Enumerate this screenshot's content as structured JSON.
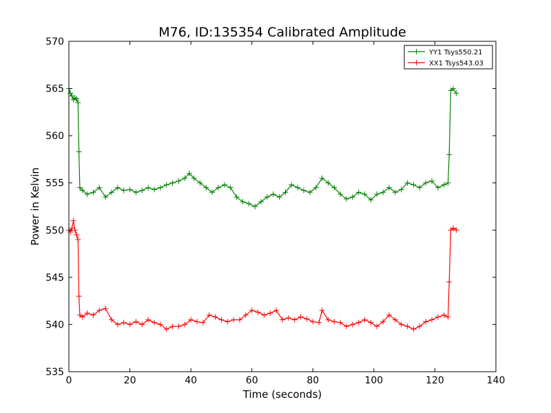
{
  "chart_data": {
    "type": "line",
    "title": "M76, ID:135354 Calibrated Amplitude",
    "xlabel": "Time (seconds)",
    "ylabel": "Power in Kelvin",
    "xlim": [
      0,
      140
    ],
    "ylim": [
      535,
      570
    ],
    "xticks": [
      "0",
      "20",
      "40",
      "60",
      "80",
      "100",
      "120",
      "140"
    ],
    "yticks": [
      "535",
      "540",
      "545",
      "550",
      "555",
      "560",
      "565",
      "570"
    ],
    "grid": false,
    "legend_position": "top-right",
    "marker": "plus",
    "series": [
      {
        "name": "YY1 Tsys550.21",
        "color": "#008000",
        "x": [
          0.0,
          0.5,
          1.0,
          1.5,
          2.0,
          2.5,
          3.0,
          3.3,
          3.6,
          4.5,
          6,
          8,
          10,
          12,
          14,
          16,
          18,
          20,
          22,
          24,
          26,
          28,
          30,
          32,
          34,
          36,
          38,
          39.5,
          41,
          43,
          45,
          47,
          49,
          51,
          53,
          55,
          57,
          59,
          61,
          63,
          65,
          67,
          69,
          71,
          73,
          75,
          77,
          79,
          81,
          83,
          85,
          87,
          89,
          91,
          93,
          95,
          97,
          99,
          101,
          103,
          105,
          107,
          109,
          111,
          113,
          115,
          117,
          119,
          121,
          123,
          124.3,
          124.7,
          125.2,
          126,
          127
        ],
        "values": [
          565.0,
          564.5,
          564.2,
          563.8,
          564.0,
          563.9,
          563.5,
          558.3,
          554.5,
          554.2,
          553.8,
          554.0,
          554.5,
          553.5,
          554.0,
          554.5,
          554.2,
          554.3,
          554.0,
          554.2,
          554.5,
          554.3,
          554.5,
          554.8,
          555.0,
          555.2,
          555.5,
          556.0,
          555.5,
          555.0,
          554.5,
          554.0,
          554.5,
          554.8,
          554.5,
          553.5,
          553.0,
          552.8,
          552.5,
          553.0,
          553.5,
          553.8,
          553.5,
          554.0,
          554.8,
          554.5,
          554.2,
          554.0,
          554.5,
          555.5,
          555.0,
          554.5,
          553.8,
          553.3,
          553.5,
          554.0,
          553.8,
          553.2,
          553.8,
          554.0,
          554.5,
          554.0,
          554.3,
          555.0,
          554.8,
          554.5,
          555.0,
          555.2,
          554.5,
          554.8,
          555.0,
          558.0,
          564.8,
          565.0,
          564.5
        ]
      },
      {
        "name": "XX1 Tsys543.03",
        "color": "#ff0000",
        "x": [
          0.0,
          0.5,
          1.0,
          1.5,
          2.0,
          2.5,
          3.0,
          3.3,
          3.6,
          4.5,
          6,
          8,
          10,
          12,
          14,
          16,
          18,
          20,
          22,
          24,
          26,
          28,
          30,
          32,
          34,
          36,
          38,
          40,
          42,
          44,
          46,
          48,
          50,
          52,
          54,
          56,
          58,
          60,
          62,
          64,
          66,
          68,
          70,
          72,
          74,
          76,
          78,
          80,
          82,
          83,
          85,
          87,
          89,
          91,
          93,
          95,
          97,
          99,
          101,
          103,
          105,
          107,
          109,
          111,
          113,
          115,
          117,
          119,
          121,
          123,
          124.3,
          124.7,
          125.2,
          126,
          127
        ],
        "values": [
          550.0,
          549.8,
          550.2,
          551.0,
          550.0,
          549.5,
          549.0,
          543.0,
          541.0,
          540.8,
          541.2,
          541.0,
          541.5,
          541.7,
          540.5,
          540.0,
          540.2,
          540.0,
          540.3,
          540.0,
          540.5,
          540.2,
          540.0,
          539.5,
          539.8,
          539.8,
          540.0,
          540.5,
          540.3,
          540.2,
          541.0,
          540.8,
          540.5,
          540.3,
          540.5,
          540.5,
          541.0,
          541.5,
          541.3,
          541.0,
          541.2,
          541.5,
          540.5,
          540.7,
          540.5,
          540.8,
          540.6,
          540.3,
          540.2,
          541.5,
          540.5,
          540.3,
          540.2,
          539.8,
          540.0,
          540.2,
          540.5,
          540.2,
          539.8,
          540.3,
          541.0,
          540.5,
          540.0,
          539.8,
          539.5,
          539.8,
          540.3,
          540.5,
          540.8,
          541.0,
          540.8,
          544.5,
          550.0,
          550.2,
          550.0
        ]
      }
    ]
  }
}
